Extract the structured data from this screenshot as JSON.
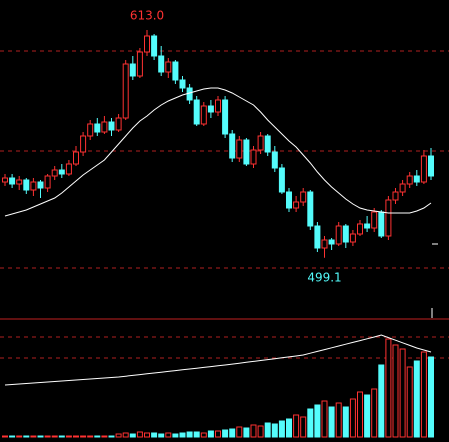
{
  "chart_data": {
    "type": "candlestick",
    "ylim": [
      469,
      628
    ],
    "up_color": "#ff3232",
    "down_color": "#54fcfc",
    "ma_color": "#ffffff",
    "open": [
      537,
      539,
      536,
      538,
      533,
      537,
      534,
      540,
      543,
      541,
      546,
      552,
      560,
      566,
      562,
      567,
      563,
      569,
      596,
      590,
      602,
      610,
      600,
      592,
      597,
      588,
      584,
      578,
      566,
      575,
      572,
      578,
      561,
      549,
      558,
      546,
      553,
      560,
      552,
      544,
      532,
      524,
      527,
      532,
      515,
      504,
      508,
      506,
      515,
      507,
      511,
      516,
      514,
      522,
      510,
      528,
      532,
      536,
      540,
      537,
      550
    ],
    "close": [
      539,
      536,
      538,
      533,
      537,
      534,
      540,
      543,
      541,
      546,
      552,
      560,
      566,
      562,
      567,
      563,
      569,
      596,
      590,
      602,
      610,
      600,
      592,
      597,
      588,
      584,
      578,
      566,
      575,
      572,
      578,
      561,
      549,
      558,
      546,
      553,
      560,
      552,
      544,
      532,
      524,
      527,
      532,
      515,
      504,
      508,
      506,
      515,
      507,
      511,
      516,
      514,
      522,
      510,
      528,
      532,
      536,
      540,
      537,
      550,
      540
    ],
    "high": [
      541,
      541,
      540,
      539,
      539,
      538,
      541,
      545,
      546,
      548,
      555,
      562,
      568,
      569,
      570,
      569,
      571,
      598,
      600,
      604,
      613,
      611,
      605,
      599,
      598,
      590,
      586,
      580,
      577,
      578,
      580,
      580,
      563,
      560,
      559,
      555,
      562,
      561,
      555,
      546,
      534,
      530,
      534,
      533,
      517,
      510,
      509,
      517,
      516,
      513,
      518,
      520,
      524,
      523,
      530,
      534,
      538,
      542,
      543,
      553,
      554
    ],
    "low": [
      535,
      534,
      533,
      531,
      530,
      529,
      532,
      538,
      539,
      540,
      545,
      550,
      558,
      560,
      561,
      560,
      562,
      568,
      588,
      589,
      600,
      598,
      590,
      589,
      586,
      582,
      576,
      565,
      565,
      569,
      570,
      559,
      547,
      547,
      545,
      544,
      551,
      550,
      542,
      531,
      522,
      522,
      525,
      513,
      502,
      499.1,
      503,
      505,
      504,
      505,
      510,
      512,
      512,
      509,
      508,
      526,
      530,
      534,
      535,
      536,
      538
    ],
    "ma": [
      520,
      521,
      522,
      523,
      524.5,
      526,
      527.5,
      529,
      531.5,
      534.5,
      537.5,
      540.5,
      543,
      545.5,
      548,
      552,
      556,
      560,
      564,
      567.5,
      570,
      573,
      575.5,
      577.5,
      579,
      580.5,
      581.5,
      582.5,
      583.5,
      584,
      584,
      583,
      581.5,
      579.5,
      577.5,
      575.5,
      572,
      568,
      564.5,
      561,
      557.5,
      554.5,
      550.5,
      546.5,
      542,
      538,
      534.5,
      531.5,
      528.5,
      526,
      524,
      523,
      522.5,
      522,
      521.5,
      521.5,
      521.5,
      521.5,
      522.5,
      524,
      526.5
    ],
    "annotations": [
      {
        "label": "613.0",
        "value": 613,
        "index": 20
      },
      {
        "label": "499.1",
        "value": 499.1,
        "index": 45
      }
    ],
    "volume": {
      "ylim": [
        0,
        117
      ],
      "values": [
        1,
        1,
        1,
        1,
        1,
        1,
        1,
        1,
        1,
        1,
        1,
        1,
        1,
        1,
        1,
        1,
        3,
        4,
        3,
        5,
        4,
        4,
        3,
        4,
        3,
        4,
        5,
        5,
        4,
        6,
        6,
        7,
        8,
        10,
        9,
        12,
        11,
        14,
        13,
        16,
        18,
        22,
        20,
        28,
        32,
        36,
        30,
        34,
        30,
        38,
        45,
        42,
        48,
        72,
        98,
        92,
        88,
        70,
        76,
        85,
        80
      ],
      "ma": [
        52,
        52.5,
        53,
        53.5,
        54,
        54.5,
        55,
        55.5,
        56,
        56.5,
        57,
        57.5,
        58,
        58.5,
        59,
        59.5,
        60,
        60.8,
        61.6,
        62.4,
        63.2,
        64,
        64.8,
        65.6,
        66.4,
        67.2,
        68,
        68.8,
        69.6,
        70.4,
        71.2,
        72,
        72.9,
        73.8,
        74.7,
        75.6,
        76.5,
        77.4,
        78.3,
        79.2,
        80.1,
        81,
        82,
        83.8,
        85.6,
        87.4,
        89.2,
        91,
        92.8,
        94.6,
        96.4,
        98.2,
        100,
        102,
        99.4,
        96.8,
        94.2,
        91.6,
        89,
        87,
        85
      ]
    }
  }
}
